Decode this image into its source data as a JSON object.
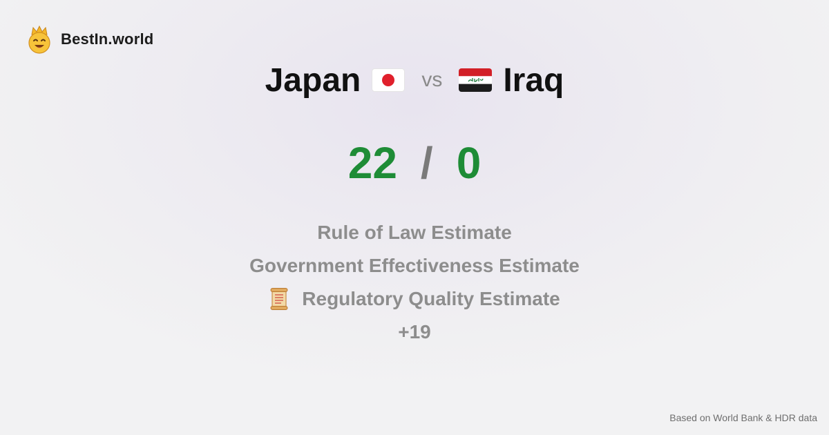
{
  "brand": {
    "name": "BestIn.world",
    "logo_icon": "crowned-smiley-icon"
  },
  "comparison": {
    "left": {
      "name": "Japan",
      "flag": "japan-flag-icon"
    },
    "vs_label": "vs",
    "right": {
      "name": "Iraq",
      "flag": "iraq-flag-icon"
    }
  },
  "score": {
    "left": "22",
    "separator": "/",
    "right": "0",
    "color": "#1e8c36"
  },
  "metrics": [
    {
      "label": "Rule of Law Estimate"
    },
    {
      "label": "Government Effectiveness Estimate"
    },
    {
      "label": "Regulatory Quality Estimate",
      "icon": "scroll-icon"
    }
  ],
  "more_count": "+19",
  "footer": {
    "source": "Based on World Bank & HDR data"
  }
}
